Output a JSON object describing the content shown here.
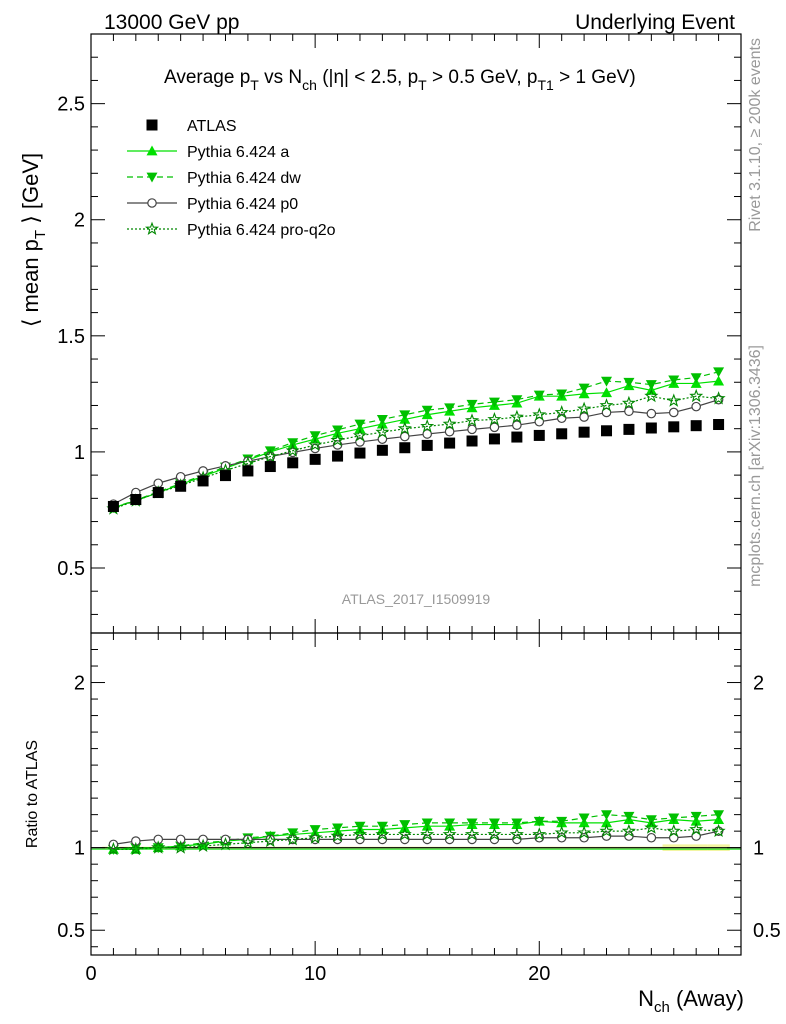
{
  "header": {
    "left": "13000 GeV pp",
    "right": "Underlying Event"
  },
  "side_labels": {
    "rivet": "Rivet 3.1.10, ≥ 200k events",
    "mcplots": "mcplots.cern.ch [arXiv:1306.3436]"
  },
  "watermark": "ATLAS_2017_I1509919",
  "colors": {
    "atlas": "#000000",
    "pythia_a": "#00e000",
    "pythia_dw": "#00c000",
    "pythia_p0": "#444444",
    "pythia_pro_q2o": "#008800",
    "band": "#f2f5a0"
  },
  "chart_data": [
    {
      "type": "scatter",
      "panel": "main",
      "title": "Average p_T vs N_ch (|η| < 2.5, p_T > 0.5 GeV, p_T1 > 1 GeV)",
      "xlabel": "N_ch (Away)",
      "ylabel": "⟨ mean p_T ⟩ [GeV]",
      "xlim": [
        0,
        29
      ],
      "ylim": [
        0.22,
        2.8
      ],
      "yticks": [
        0.5,
        1,
        1.5,
        2,
        2.5
      ],
      "xticks": [
        0,
        10,
        20
      ],
      "legend_position": "top-left",
      "x": [
        1,
        2,
        3,
        4,
        5,
        6,
        7,
        8,
        9,
        10,
        11,
        12,
        13,
        14,
        15,
        16,
        17,
        18,
        19,
        20,
        21,
        22,
        23,
        24,
        25,
        26,
        27,
        28
      ],
      "series": [
        {
          "name": "ATLAS",
          "marker": "square",
          "values": [
            0.765,
            0.795,
            0.825,
            0.852,
            0.875,
            0.898,
            0.918,
            0.937,
            0.953,
            0.968,
            0.982,
            0.995,
            1.007,
            1.018,
            1.028,
            1.038,
            1.047,
            1.056,
            1.064,
            1.071,
            1.078,
            1.085,
            1.091,
            1.097,
            1.103,
            1.108,
            1.113,
            1.118
          ]
        },
        {
          "name": "Pythia 6.424 a",
          "marker": "triangle-up",
          "values": [
            0.76,
            0.79,
            0.825,
            0.86,
            0.895,
            0.93,
            0.965,
            1.0,
            1.03,
            1.055,
            1.08,
            1.1,
            1.12,
            1.14,
            1.16,
            1.175,
            1.19,
            1.2,
            1.21,
            1.24,
            1.24,
            1.25,
            1.255,
            1.285,
            1.265,
            1.295,
            1.295,
            1.305
          ]
        },
        {
          "name": "Pythia 6.424 dw",
          "marker": "triangle-down",
          "values": [
            0.76,
            0.792,
            0.828,
            0.864,
            0.9,
            0.935,
            0.97,
            1.005,
            1.04,
            1.07,
            1.095,
            1.12,
            1.14,
            1.16,
            1.18,
            1.19,
            1.205,
            1.215,
            1.225,
            1.245,
            1.25,
            1.275,
            1.305,
            1.3,
            1.29,
            1.31,
            1.32,
            1.345
          ]
        },
        {
          "name": "Pythia 6.424 p0",
          "marker": "open-circle",
          "values": [
            0.775,
            0.825,
            0.865,
            0.893,
            0.918,
            0.94,
            0.96,
            0.98,
            0.998,
            1.015,
            1.03,
            1.043,
            1.055,
            1.066,
            1.077,
            1.087,
            1.097,
            1.106,
            1.115,
            1.13,
            1.145,
            1.15,
            1.17,
            1.175,
            1.165,
            1.17,
            1.195,
            1.225
          ]
        },
        {
          "name": "Pythia 6.424 pro-q2o",
          "marker": "open-star",
          "values": [
            0.755,
            0.79,
            0.825,
            0.855,
            0.888,
            0.92,
            0.95,
            0.98,
            1.005,
            1.03,
            1.05,
            1.07,
            1.085,
            1.1,
            1.11,
            1.12,
            1.135,
            1.14,
            1.15,
            1.16,
            1.17,
            1.185,
            1.2,
            1.21,
            1.24,
            1.22,
            1.24,
            1.23
          ]
        }
      ]
    },
    {
      "type": "scatter",
      "panel": "ratio",
      "xlabel": "N_ch (Away)",
      "ylabel": "Ratio to ATLAS",
      "xlim": [
        0,
        29
      ],
      "ylim": [
        0.35,
        2.3
      ],
      "yticks": [
        0.5,
        1,
        2
      ],
      "reference_line": 1,
      "series": [
        {
          "name": "Pythia 6.424 a",
          "values": [
            0.99,
            0.99,
            1.0,
            1.01,
            1.02,
            1.04,
            1.05,
            1.07,
            1.08,
            1.09,
            1.1,
            1.11,
            1.11,
            1.12,
            1.13,
            1.13,
            1.14,
            1.14,
            1.14,
            1.16,
            1.15,
            1.15,
            1.15,
            1.17,
            1.15,
            1.17,
            1.16,
            1.17
          ]
        },
        {
          "name": "Pythia 6.424 dw",
          "values": [
            0.99,
            1.0,
            1.0,
            1.01,
            1.03,
            1.04,
            1.06,
            1.07,
            1.09,
            1.11,
            1.12,
            1.13,
            1.13,
            1.14,
            1.15,
            1.15,
            1.15,
            1.15,
            1.15,
            1.16,
            1.16,
            1.18,
            1.2,
            1.19,
            1.17,
            1.18,
            1.19,
            1.2
          ]
        },
        {
          "name": "Pythia 6.424 p0",
          "values": [
            1.02,
            1.04,
            1.05,
            1.05,
            1.05,
            1.05,
            1.05,
            1.05,
            1.05,
            1.05,
            1.05,
            1.05,
            1.05,
            1.05,
            1.05,
            1.05,
            1.05,
            1.05,
            1.05,
            1.06,
            1.06,
            1.06,
            1.07,
            1.07,
            1.06,
            1.06,
            1.07,
            1.1
          ]
        },
        {
          "name": "Pythia 6.424 pro-q2o",
          "values": [
            0.99,
            0.99,
            1.0,
            1.0,
            1.01,
            1.02,
            1.03,
            1.04,
            1.05,
            1.06,
            1.07,
            1.08,
            1.08,
            1.08,
            1.08,
            1.08,
            1.08,
            1.08,
            1.08,
            1.08,
            1.09,
            1.09,
            1.1,
            1.1,
            1.12,
            1.1,
            1.11,
            1.1
          ]
        }
      ]
    }
  ]
}
